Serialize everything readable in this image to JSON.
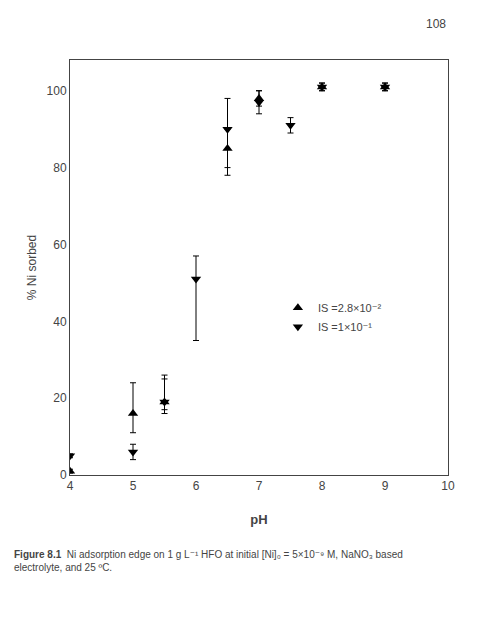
{
  "chart_data": {
    "type": "scatter",
    "x_label": "pH",
    "y_label": "% Ni sorbed",
    "xlim": [
      4,
      10
    ],
    "ylim": [
      0,
      108
    ],
    "xticks": [
      4,
      5,
      6,
      7,
      8,
      9,
      10
    ],
    "yticks": [
      0,
      20,
      40,
      60,
      80,
      100
    ],
    "grid": false,
    "legend": "center right",
    "series": [
      {
        "name": "IS =2.8×10⁻²",
        "color": "#000000",
        "marker": "triangle-up",
        "x": [
          4,
          5,
          5.5,
          6.5,
          7,
          8,
          9
        ],
        "values": [
          1,
          16,
          19,
          85,
          98,
          101,
          101
        ],
        "error_minus": [
          0.5,
          5,
          2,
          5,
          2,
          1,
          1
        ],
        "error_plus": [
          0.5,
          8,
          7,
          5,
          2,
          1,
          1
        ]
      },
      {
        "name": "IS =1×10⁻¹",
        "color": "#000000",
        "marker": "triangle-down",
        "x": [
          4,
          5,
          5.5,
          6,
          6.5,
          7,
          7.5,
          8,
          9
        ],
        "values": [
          5,
          6,
          19,
          51,
          90,
          97,
          91,
          101,
          101
        ],
        "error_minus": [
          0.5,
          2,
          3,
          16,
          12,
          3,
          2,
          1,
          1
        ],
        "error_plus": [
          0.5,
          2,
          6,
          6,
          8,
          3,
          2,
          1,
          1
        ]
      }
    ],
    "annotations": [
      "108",
      "Figure 8.1",
      "  Ni adsorption edge on 1 g L⁻¹ HFO at initial [Ni]₀ = 5×10⁻⁹ M, NaNO₃ based\nelectrolyte, and 25 ºC."
    ]
  }
}
